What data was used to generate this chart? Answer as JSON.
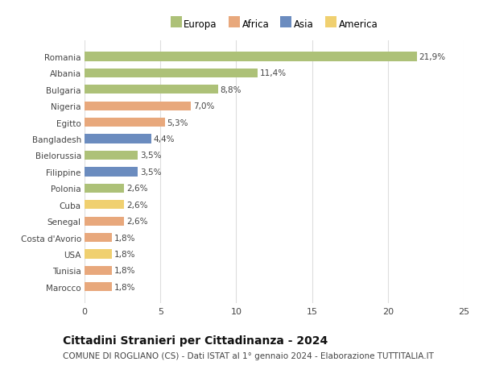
{
  "countries": [
    "Romania",
    "Albania",
    "Bulgaria",
    "Nigeria",
    "Egitto",
    "Bangladesh",
    "Bielorussia",
    "Filippine",
    "Polonia",
    "Cuba",
    "Senegal",
    "Costa d'Avorio",
    "USA",
    "Tunisia",
    "Marocco"
  ],
  "values": [
    21.9,
    11.4,
    8.8,
    7.0,
    5.3,
    4.4,
    3.5,
    3.5,
    2.6,
    2.6,
    2.6,
    1.8,
    1.8,
    1.8,
    1.8
  ],
  "labels": [
    "21,9%",
    "11,4%",
    "8,8%",
    "7,0%",
    "5,3%",
    "4,4%",
    "3,5%",
    "3,5%",
    "2,6%",
    "2,6%",
    "2,6%",
    "1,8%",
    "1,8%",
    "1,8%",
    "1,8%"
  ],
  "continents": [
    "Europa",
    "Europa",
    "Europa",
    "Africa",
    "Africa",
    "Asia",
    "Europa",
    "Asia",
    "Europa",
    "America",
    "Africa",
    "Africa",
    "America",
    "Africa",
    "Africa"
  ],
  "continent_colors": {
    "Europa": "#adc178",
    "Africa": "#e8a87c",
    "Asia": "#6b8cbf",
    "America": "#f0d070"
  },
  "legend_order": [
    "Europa",
    "Africa",
    "Asia",
    "America"
  ],
  "title": "Cittadini Stranieri per Cittadinanza - 2024",
  "subtitle": "COMUNE DI ROGLIANO (CS) - Dati ISTAT al 1° gennaio 2024 - Elaborazione TUTTITALIA.IT",
  "xlim": [
    0,
    25
  ],
  "xticks": [
    0,
    5,
    10,
    15,
    20,
    25
  ],
  "background_color": "#ffffff",
  "grid_color": "#dddddd",
  "bar_height": 0.55,
  "label_fontsize": 7.5,
  "title_fontsize": 10,
  "subtitle_fontsize": 7.5,
  "ytick_fontsize": 7.5,
  "xtick_fontsize": 8,
  "legend_fontsize": 8.5
}
